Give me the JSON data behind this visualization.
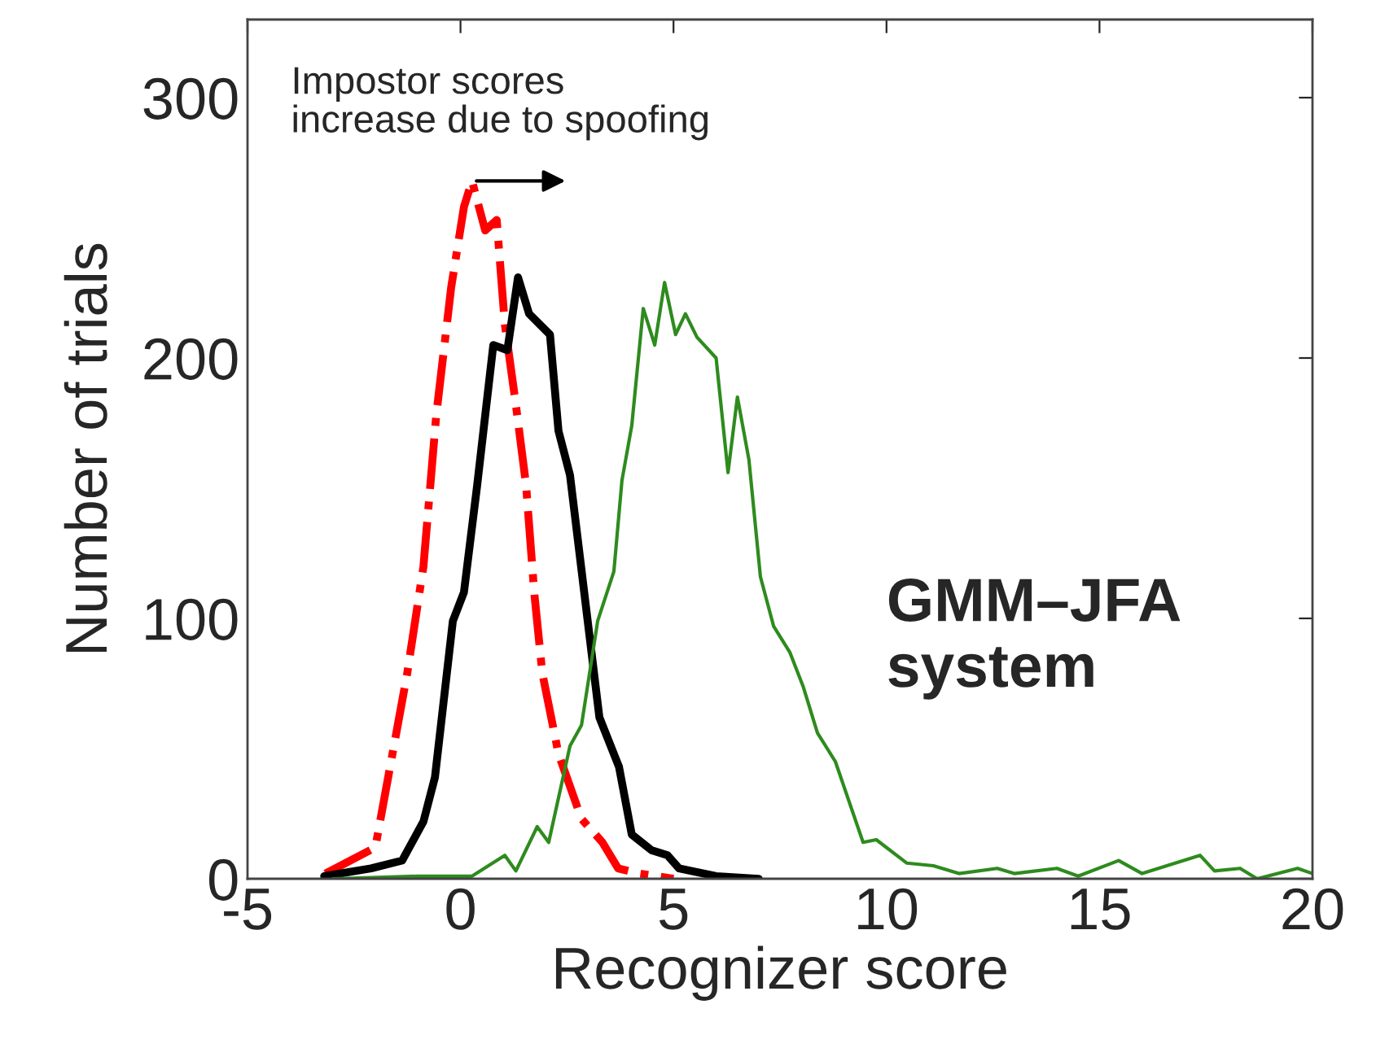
{
  "chart_data": {
    "type": "line",
    "xlabel": "Recognizer score",
    "ylabel": "Number of trials",
    "xlim": [
      -5,
      20
    ],
    "ylim": [
      0,
      330
    ],
    "xticks": [
      -5,
      0,
      5,
      10,
      15,
      20
    ],
    "yticks": [
      0,
      100,
      200,
      300
    ],
    "grid": false,
    "legend": false,
    "series": [
      {
        "color": "#ff0000",
        "line_style": "dashdot",
        "x": [
          -3.17,
          -2.0,
          -1.25,
          -0.87,
          -0.57,
          -0.22,
          0.08,
          0.27,
          0.58,
          0.85,
          1.04,
          1.3,
          1.54,
          1.73,
          1.92,
          2.3,
          2.84,
          3.33,
          3.7,
          4.2,
          5.0
        ],
        "values": [
          2,
          12,
          79,
          120,
          178,
          227,
          258,
          268,
          249,
          253,
          213,
          182,
          151,
          110,
          79,
          48,
          23,
          14,
          4,
          2,
          0
        ]
      },
      {
        "color": "#000000",
        "line_style": "solid",
        "x": [
          -3.2,
          -2.1,
          -1.37,
          -0.87,
          -0.6,
          -0.18,
          0.08,
          0.39,
          0.77,
          1.1,
          1.35,
          1.61,
          2.1,
          2.3,
          2.57,
          3.26,
          3.72,
          4.02,
          4.48,
          4.86,
          5.13,
          6.0,
          7.0
        ],
        "values": [
          1,
          4,
          7,
          22,
          39,
          99,
          110,
          151,
          205,
          203,
          231,
          217,
          209,
          172,
          155,
          62,
          43,
          17,
          11,
          9,
          4,
          1,
          0
        ]
      },
      {
        "color": "#2e8b1e",
        "line_style": "solid",
        "x": [
          -3.0,
          -1.0,
          0.27,
          1.04,
          1.3,
          1.8,
          2.07,
          2.57,
          2.84,
          3.22,
          3.6,
          3.79,
          4.02,
          4.29,
          4.56,
          4.79,
          5.05,
          5.28,
          5.55,
          6.0,
          6.28,
          6.5,
          6.77,
          7.04,
          7.35,
          7.73,
          8.04,
          8.38,
          8.8,
          9.45,
          9.76,
          10.48,
          11.1,
          11.7,
          12.6,
          13.0,
          14.0,
          14.5,
          15.45,
          16.0,
          17.36,
          17.7,
          18.3,
          18.7,
          19.65,
          20.0
        ],
        "values": [
          0,
          1,
          1,
          9,
          3,
          20,
          14,
          51,
          59,
          99,
          118,
          153,
          174,
          219,
          205,
          229,
          209,
          217,
          208,
          200,
          156,
          185,
          161,
          116,
          97,
          87,
          74,
          56,
          45,
          14,
          15,
          6,
          5,
          2,
          4,
          2,
          4,
          1,
          7,
          2,
          9,
          3,
          4,
          0,
          4,
          2
        ]
      }
    ],
    "annotations": [
      {
        "text": "Impostor scores\nincrease due to spoofing",
        "x": 0.27,
        "y": 268
      },
      "GMM–JFA\nsystem"
    ]
  }
}
